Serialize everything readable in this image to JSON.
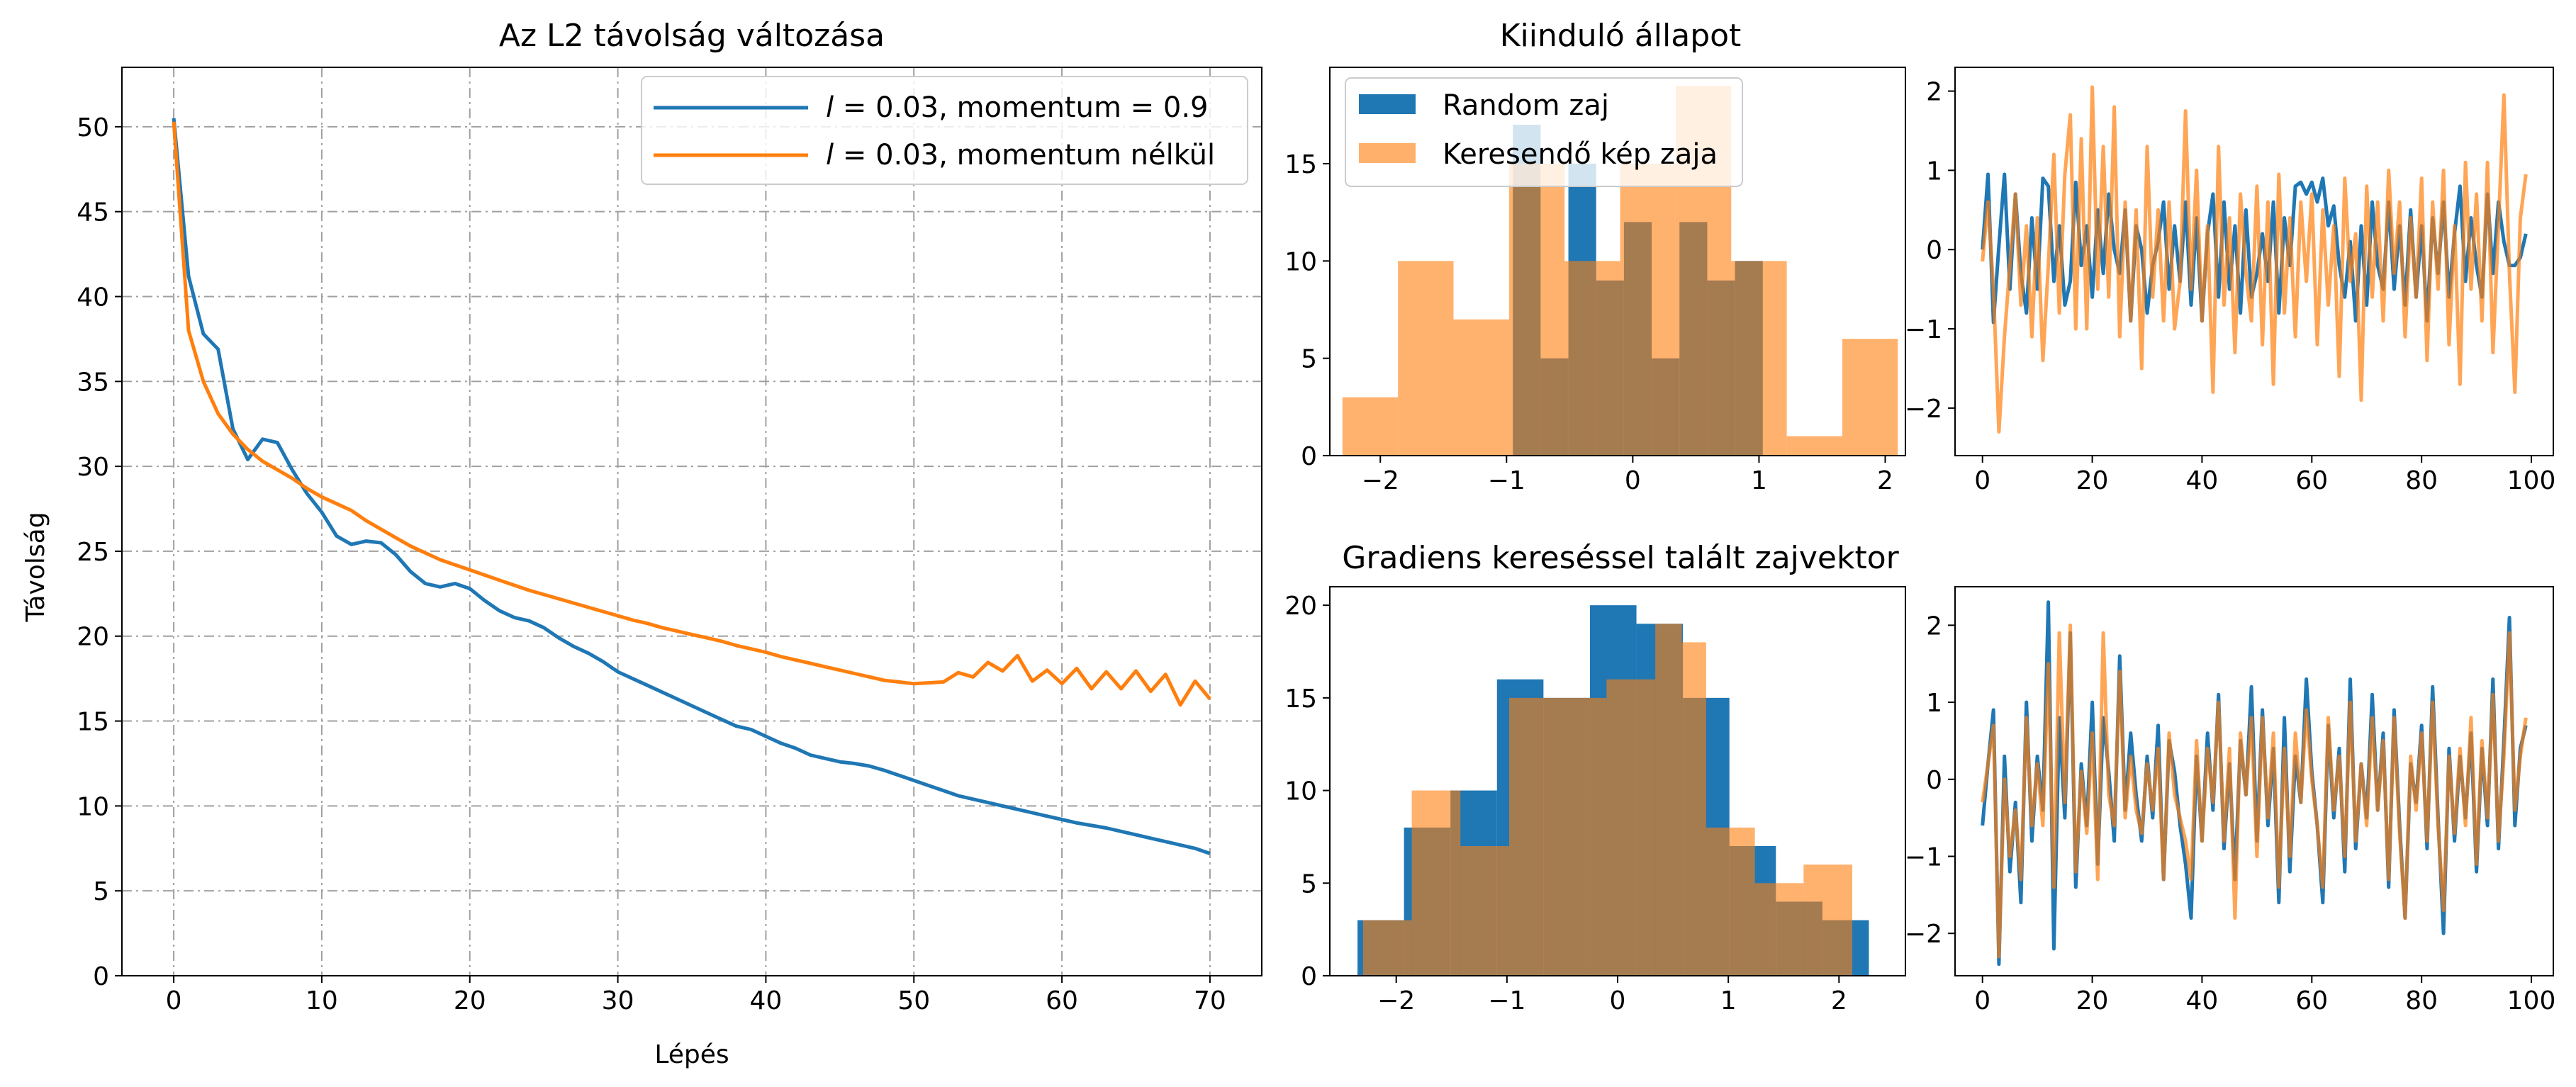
{
  "colors": {
    "blue": "#1f77b4",
    "orange": "#ff7f0e",
    "orange_light": "#ffb06a",
    "overlap": "#a7784e",
    "grid": "#a0a0a0"
  },
  "chart_data": [
    {
      "id": "main",
      "type": "line",
      "title": "Az L2 távolság változása",
      "xlabel": "Lépés",
      "ylabel": "Távolság",
      "xlim": [
        -3.5,
        73.5
      ],
      "ylim": [
        0,
        53.5
      ],
      "xticks": [
        0,
        10,
        20,
        30,
        40,
        50,
        60,
        70
      ],
      "yticks": [
        0,
        5,
        10,
        15,
        20,
        25,
        30,
        35,
        40,
        45,
        50
      ],
      "grid": true,
      "legend": "top-right",
      "series": [
        {
          "name": "l = 0.03, momentum = 0.9",
          "color": "blue",
          "x": [
            0,
            1,
            2,
            3,
            4,
            5,
            6,
            7,
            8,
            9,
            10,
            11,
            12,
            13,
            14,
            15,
            16,
            17,
            18,
            19,
            20,
            21,
            22,
            23,
            24,
            25,
            26,
            27,
            28,
            29,
            30,
            31,
            32,
            33,
            34,
            35,
            36,
            37,
            38,
            39,
            40,
            41,
            42,
            43,
            44,
            45,
            46,
            47,
            48,
            49,
            50,
            51,
            52,
            53,
            54,
            55,
            56,
            57,
            58,
            59,
            60,
            61,
            62,
            63,
            64,
            65,
            66,
            67,
            68,
            69,
            70
          ],
          "y": [
            50.5,
            41.2,
            37.8,
            36.9,
            32.2,
            30.4,
            31.6,
            31.4,
            29.8,
            28.4,
            27.3,
            25.9,
            25.4,
            25.6,
            25.5,
            24.8,
            23.8,
            23.1,
            22.9,
            23.1,
            22.8,
            22.1,
            21.5,
            21.1,
            20.9,
            20.5,
            19.9,
            19.4,
            19.0,
            18.5,
            17.9,
            17.5,
            17.1,
            16.7,
            16.3,
            15.9,
            15.5,
            15.1,
            14.7,
            14.5,
            14.1,
            13.7,
            13.4,
            13.0,
            12.8,
            12.6,
            12.5,
            12.35,
            12.1,
            11.8,
            11.5,
            11.2,
            10.9,
            10.6,
            10.4,
            10.2,
            10.0,
            9.8,
            9.6,
            9.4,
            9.2,
            9.0,
            8.85,
            8.7,
            8.5,
            8.3,
            8.1,
            7.9,
            7.7,
            7.5,
            7.2
          ]
        },
        {
          "name": "l = 0.03, momentum nélkül",
          "color": "orange",
          "x": [
            0,
            1,
            2,
            3,
            4,
            5,
            6,
            7,
            8,
            9,
            10,
            11,
            12,
            13,
            14,
            15,
            16,
            17,
            18,
            19,
            20,
            21,
            22,
            23,
            24,
            25,
            26,
            27,
            28,
            29,
            30,
            31,
            32,
            33,
            34,
            35,
            36,
            37,
            38,
            39,
            40,
            41,
            42,
            43,
            44,
            45,
            46,
            47,
            48,
            49,
            50,
            51,
            52,
            53,
            54,
            55,
            56,
            57,
            58,
            59,
            60,
            61,
            62,
            63,
            64,
            65,
            66,
            67,
            68,
            69,
            70
          ],
          "y": [
            50.3,
            38.0,
            35.0,
            33.1,
            31.9,
            31.0,
            30.3,
            29.8,
            29.3,
            28.7,
            28.2,
            27.8,
            27.4,
            26.8,
            26.3,
            25.8,
            25.3,
            24.9,
            24.5,
            24.2,
            23.9,
            23.6,
            23.3,
            23.0,
            22.7,
            22.45,
            22.2,
            21.95,
            21.7,
            21.45,
            21.2,
            20.95,
            20.75,
            20.5,
            20.3,
            20.1,
            19.9,
            19.7,
            19.45,
            19.25,
            19.05,
            18.8,
            18.6,
            18.4,
            18.2,
            18.0,
            17.8,
            17.6,
            17.4,
            17.3,
            17.2,
            17.25,
            17.3,
            17.85,
            17.6,
            18.45,
            17.95,
            18.85,
            17.35,
            18.0,
            17.2,
            18.1,
            16.9,
            17.9,
            16.9,
            17.95,
            16.75,
            17.75,
            15.95,
            17.35,
            16.3
          ]
        }
      ]
    },
    {
      "id": "hist-top",
      "type": "bar",
      "title": "Kiinduló állapot",
      "xlim": [
        -2.4,
        2.16
      ],
      "ylim": [
        0,
        19.95
      ],
      "xticks": [
        -2,
        -1,
        0,
        1,
        2
      ],
      "yticks": [
        0,
        5,
        10,
        15
      ],
      "legend": "top-left",
      "series": [
        {
          "name": "Random zaj",
          "color": "blue",
          "bins": [
            -0.95,
            -0.73,
            -0.51,
            -0.29,
            -0.07,
            0.15,
            0.37,
            0.59,
            0.81,
            1.03
          ],
          "counts": [
            17,
            5,
            15,
            9,
            12,
            5,
            12,
            9,
            10
          ]
        },
        {
          "name": "Keresendő kép zaja",
          "color": "orange_light",
          "bins": [
            -2.3,
            -1.86,
            -1.42,
            -0.98,
            -0.54,
            -0.1,
            0.34,
            0.78,
            1.22,
            1.66,
            2.1
          ],
          "counts": [
            3,
            10,
            7,
            15,
            10,
            15,
            19,
            10,
            1,
            6
          ]
        }
      ]
    },
    {
      "id": "line-top",
      "type": "line",
      "xlim": [
        -5,
        104
      ],
      "ylim": [
        -2.6,
        2.3
      ],
      "xticks": [
        0,
        20,
        40,
        60,
        80,
        100
      ],
      "yticks": [
        -2,
        -1,
        0,
        1,
        2
      ],
      "series": [
        {
          "color": "blue",
          "y": [
            0.0,
            0.95,
            -0.92,
            0.05,
            0.95,
            -0.5,
            0.7,
            -0.3,
            -0.8,
            0.4,
            -0.5,
            0.9,
            0.8,
            -0.4,
            0.3,
            -0.7,
            -0.4,
            0.85,
            -0.2,
            0.3,
            -0.6,
            0.5,
            -0.3,
            0.7,
            0.0,
            -0.3,
            0.5,
            -0.9,
            0.3,
            0.0,
            -0.8,
            -0.2,
            0.1,
            0.6,
            -0.5,
            0.3,
            -0.4,
            0.6,
            -0.7,
            0.4,
            -0.9,
            0.2,
            0.7,
            -0.6,
            0.6,
            -0.5,
            0.3,
            -0.8,
            0.5,
            -0.6,
            -0.3,
            0.2,
            -0.4,
            0.6,
            -0.8,
            0.4,
            -0.2,
            0.8,
            0.85,
            0.7,
            0.85,
            0.6,
            0.9,
            0.3,
            0.55,
            -0.2,
            -0.6,
            0.1,
            -0.9,
            0.3,
            -0.7,
            0.6,
            -0.2,
            -0.5,
            0.6,
            -0.5,
            0.3,
            -0.7,
            0.5,
            -0.6,
            0.3,
            -0.9,
            0.4,
            -0.3,
            0.6,
            -0.6,
            0.2,
            0.8,
            -0.4,
            0.4,
            -0.2,
            -0.6,
            0.7,
            -0.3,
            0.6,
            0.1,
            -0.2,
            -0.2,
            -0.1,
            0.2
          ]
        },
        {
          "color": "orange_light",
          "y": [
            -0.15,
            0.6,
            -0.5,
            -2.3,
            -1.1,
            -0.2,
            0.7,
            -0.7,
            0.3,
            -1.1,
            0.4,
            -1.4,
            -0.2,
            1.2,
            -0.8,
            0.95,
            1.7,
            -1.0,
            1.4,
            -1.0,
            2.05,
            -0.5,
            1.3,
            -0.6,
            1.8,
            -1.1,
            0.6,
            -0.9,
            0.5,
            -1.5,
            1.3,
            -0.6,
            0.5,
            -0.9,
            0.6,
            -1.0,
            -0.4,
            1.75,
            -0.5,
            1.0,
            -0.9,
            0.3,
            -1.8,
            1.3,
            -0.7,
            0.4,
            -1.3,
            0.7,
            -0.3,
            -0.9,
            0.8,
            -1.2,
            0.6,
            -1.7,
            0.95,
            -0.8,
            0.4,
            -1.1,
            0.6,
            -0.4,
            0.7,
            -1.2,
            0.5,
            -0.7,
            0.3,
            -1.6,
            0.9,
            -0.4,
            0.2,
            -1.9,
            0.8,
            -0.6,
            0.6,
            -0.9,
            1.0,
            -0.3,
            0.6,
            -1.1,
            0.4,
            -0.6,
            0.9,
            -1.4,
            0.6,
            -0.5,
            1.0,
            -1.2,
            0.3,
            -1.7,
            1.1,
            -0.5,
            0.7,
            -0.9,
            1.1,
            -1.3,
            0.3,
            1.95,
            -0.3,
            -1.8,
            0.4,
            0.95
          ]
        }
      ]
    },
    {
      "id": "hist-bottom",
      "type": "bar",
      "title": "Gradiens kereséssel talált zajvektor",
      "xlim": [
        -2.6,
        2.6
      ],
      "ylim": [
        0,
        21
      ],
      "xticks": [
        -2,
        -1,
        0,
        1,
        2
      ],
      "yticks": [
        0,
        5,
        10,
        15,
        20
      ],
      "series": [
        {
          "name": "Random zaj",
          "color": "blue",
          "bins": [
            -2.35,
            -1.93,
            -1.51,
            -1.09,
            -0.67,
            -0.25,
            0.17,
            0.59,
            1.01,
            1.43,
            1.85,
            2.27
          ],
          "counts": [
            3,
            8,
            10,
            16,
            15,
            20,
            19,
            15,
            7,
            4,
            3
          ]
        },
        {
          "name": "Keresendő kép zaja",
          "color": "orange_light",
          "bins": [
            -2.3,
            -1.86,
            -1.42,
            -0.98,
            -0.54,
            -0.1,
            0.34,
            0.58,
            0.8,
            1.24,
            1.68,
            2.12
          ],
          "counts": [
            3,
            10,
            7,
            15,
            15,
            16,
            19,
            18,
            8,
            5,
            6
          ]
        }
      ]
    },
    {
      "id": "line-bottom",
      "type": "line",
      "xlim": [
        -5,
        104
      ],
      "ylim": [
        -2.55,
        2.5
      ],
      "xticks": [
        0,
        20,
        40,
        60,
        80,
        100
      ],
      "yticks": [
        -2,
        -1,
        0,
        1,
        2
      ],
      "series": [
        {
          "color": "blue",
          "y": [
            -0.6,
            0.2,
            0.9,
            -2.4,
            0.3,
            -1.2,
            -0.3,
            -1.6,
            1.0,
            -0.8,
            0.3,
            -0.4,
            2.3,
            -2.2,
            0.8,
            -0.5,
            1.9,
            -1.4,
            0.2,
            -0.6,
            1.0,
            -1.1,
            0.8,
            0.1,
            -0.8,
            1.6,
            -0.4,
            0.6,
            -0.2,
            -0.8,
            0.3,
            -0.5,
            0.7,
            -1.3,
            0.5,
            0.1,
            -0.6,
            -1.1,
            -1.8,
            0.3,
            -0.8,
            0.6,
            -0.4,
            1.1,
            -0.9,
            0.2,
            -1.3,
            0.5,
            -0.2,
            1.2,
            -0.8,
            0.9,
            -0.6,
            0.4,
            -1.6,
            0.8,
            -1.2,
            0.3,
            -0.3,
            1.3,
            0.1,
            -0.6,
            -1.6,
            0.7,
            -0.5,
            0.4,
            -1.2,
            1.3,
            -0.9,
            0.2,
            -0.5,
            1.1,
            -0.4,
            0.6,
            -1.4,
            0.9,
            -0.6,
            -1.8,
            0.2,
            -0.3,
            0.7,
            -0.9,
            1.2,
            -0.5,
            -2.0,
            0.4,
            -0.8,
            0.3,
            -0.5,
            0.6,
            -1.2,
            0.4,
            -0.6,
            1.3,
            -0.9,
            0.5,
            2.1,
            -0.6,
            0.4,
            0.7
          ]
        },
        {
          "color": "orange_light",
          "y": [
            -0.3,
            0.2,
            0.7,
            -2.3,
            0.0,
            -1.0,
            -0.4,
            -1.3,
            0.8,
            -0.6,
            0.2,
            -0.6,
            1.5,
            -1.4,
            1.9,
            -0.3,
            2.0,
            -1.2,
            0.1,
            -0.7,
            0.6,
            -1.3,
            1.9,
            -0.2,
            -0.6,
            1.4,
            -0.5,
            0.3,
            -0.4,
            -0.7,
            0.2,
            -0.4,
            0.4,
            -1.3,
            0.6,
            -0.2,
            -0.5,
            -0.8,
            -1.3,
            0.5,
            -0.8,
            0.4,
            -0.3,
            1.0,
            -0.8,
            0.4,
            -1.8,
            0.6,
            -0.2,
            0.8,
            -1.0,
            0.8,
            -0.5,
            0.6,
            -1.4,
            0.4,
            -1.0,
            0.6,
            -0.3,
            0.9,
            0.0,
            -0.6,
            -1.4,
            0.8,
            -0.4,
            0.3,
            -1.0,
            1.0,
            -0.8,
            0.2,
            -0.6,
            0.8,
            -0.4,
            0.5,
            -1.3,
            0.8,
            -0.7,
            -1.8,
            0.3,
            -0.4,
            0.6,
            -0.8,
            1.0,
            -0.6,
            -1.7,
            0.3,
            -0.7,
            0.4,
            -0.6,
            0.8,
            -1.1,
            0.5,
            -0.5,
            1.1,
            -0.8,
            0.3,
            1.9,
            -0.4,
            0.3,
            0.8
          ]
        }
      ]
    }
  ]
}
